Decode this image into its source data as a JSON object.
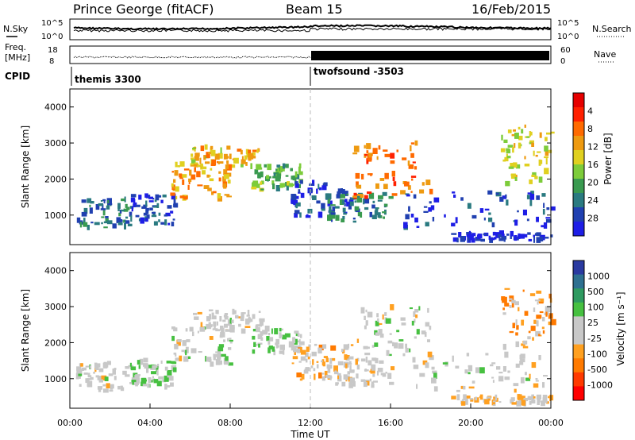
{
  "header": {
    "station": "Prince George (fitACF)",
    "beam": "Beam 15",
    "date": "16/Feb/2015"
  },
  "noise_panel": {
    "left_label": "N.Sky",
    "right_label": "N.Search",
    "left_ticks": [
      "10^5",
      "10^0"
    ],
    "right_ticks": [
      "10^5",
      "10^0"
    ]
  },
  "freq_panel": {
    "left_label_1": "Freq.",
    "left_label_2": "[MHz]",
    "right_label": "Nave",
    "left_ticks": [
      "18",
      "8"
    ],
    "right_ticks": [
      "60",
      "0"
    ]
  },
  "cpid": {
    "label": "CPID",
    "programs": [
      {
        "name": "themis 3300",
        "start_hour": 0
      },
      {
        "name": "twofsound -3503",
        "start_hour": 12
      }
    ]
  },
  "x_axis": {
    "title": "Time UT",
    "ticks": [
      "00:00",
      "04:00",
      "08:00",
      "12:00",
      "16:00",
      "20:00",
      "00:00"
    ]
  },
  "colors": {
    "power_scale": [
      "#1e1ee6",
      "#2040b0",
      "#2a7a80",
      "#3a9a50",
      "#7dcc3a",
      "#e0d020",
      "#ee9a10",
      "#ff6a00",
      "#ff2000",
      "#e60000"
    ],
    "velocity_scale": [
      "#2a3aa0",
      "#2e7090",
      "#2e9a60",
      "#46c040",
      "#c8c8c8",
      "#c8c8c8",
      "#ffa020",
      "#ff7a00",
      "#ff3a00",
      "#ff0000"
    ],
    "data_stripe": "#d8d8d8"
  },
  "chart_data": [
    {
      "type": "heatmap",
      "name": "power",
      "ylabel": "Slant Range [km]",
      "yticks": [
        "1000",
        "2000",
        "3000",
        "4000"
      ],
      "ylim": [
        180,
        4500
      ],
      "xlim_hours": [
        0,
        24
      ],
      "colorbar_label": "Power [dB]",
      "colorbar_ticks": [
        "4",
        "8",
        "12",
        "16",
        "20",
        "24",
        "28"
      ],
      "zlim": [
        0,
        30
      ],
      "bands": [
        {
          "t0": 0.3,
          "t1": 3.0,
          "r_lo": 650,
          "r_hi": 1450,
          "v": 22
        },
        {
          "t0": 3.0,
          "t1": 5.2,
          "r_lo": 750,
          "r_hi": 1550,
          "v": 26
        },
        {
          "t0": 5.0,
          "t1": 8.0,
          "r_lo": 1400,
          "r_hi": 2500,
          "v": 10
        },
        {
          "t0": 6.0,
          "t1": 9.5,
          "r_lo": 2300,
          "r_hi": 2900,
          "v": 12
        },
        {
          "t0": 9.0,
          "t1": 11.5,
          "r_lo": 1700,
          "r_hi": 2400,
          "v": 18
        },
        {
          "t0": 11.0,
          "t1": 14.0,
          "r_lo": 950,
          "r_hi": 1950,
          "v": 27
        },
        {
          "t0": 12.5,
          "t1": 16.0,
          "r_lo": 800,
          "r_hi": 1600,
          "v": 22
        },
        {
          "t0": 14.0,
          "t1": 18.0,
          "r_lo": 1500,
          "r_hi": 3000,
          "v": 8
        },
        {
          "t0": 16.5,
          "t1": 24.0,
          "r_lo": 650,
          "r_hi": 1700,
          "v": 26
        },
        {
          "t0": 19.0,
          "t1": 24.0,
          "r_lo": 300,
          "r_hi": 500,
          "v": 28
        },
        {
          "t0": 21.5,
          "t1": 24.0,
          "r_lo": 1800,
          "r_hi": 3500,
          "v": 14
        }
      ]
    },
    {
      "type": "heatmap",
      "name": "velocity",
      "ylabel": "Slant Range [km]",
      "yticks": [
        "1000",
        "2000",
        "3000",
        "4000"
      ],
      "ylim": [
        180,
        4500
      ],
      "xlim_hours": [
        0,
        24
      ],
      "colorbar_label": "Velocity [m s⁻¹]",
      "colorbar_ticks": [
        "1000",
        "500",
        "100",
        "25",
        "-25",
        "-100",
        "-500",
        "-1000"
      ],
      "zlim": [
        -1000,
        1000
      ],
      "bands": [
        {
          "t0": 0.3,
          "t1": 3.0,
          "r_lo": 650,
          "r_hi": 1450,
          "v": 0
        },
        {
          "t0": 3.0,
          "t1": 5.2,
          "r_lo": 750,
          "r_hi": 1550,
          "v": 150
        },
        {
          "t0": 5.0,
          "t1": 8.0,
          "r_lo": 1400,
          "r_hi": 2500,
          "v": 10
        },
        {
          "t0": 6.0,
          "t1": 9.5,
          "r_lo": 2300,
          "r_hi": 2900,
          "v": 0
        },
        {
          "t0": 9.0,
          "t1": 11.5,
          "r_lo": 1700,
          "r_hi": 2400,
          "v": 80
        },
        {
          "t0": 11.0,
          "t1": 14.0,
          "r_lo": 950,
          "r_hi": 1950,
          "v": -200
        },
        {
          "t0": 12.5,
          "t1": 16.0,
          "r_lo": 800,
          "r_hi": 1600,
          "v": -60
        },
        {
          "t0": 14.0,
          "t1": 18.0,
          "r_lo": 1500,
          "r_hi": 3000,
          "v": 0
        },
        {
          "t0": 16.5,
          "t1": 24.0,
          "r_lo": 650,
          "r_hi": 1700,
          "v": 0
        },
        {
          "t0": 19.0,
          "t1": 24.0,
          "r_lo": 300,
          "r_hi": 500,
          "v": -150
        },
        {
          "t0": 21.5,
          "t1": 24.0,
          "r_lo": 1800,
          "r_hi": 3500,
          "v": -300
        }
      ]
    }
  ]
}
